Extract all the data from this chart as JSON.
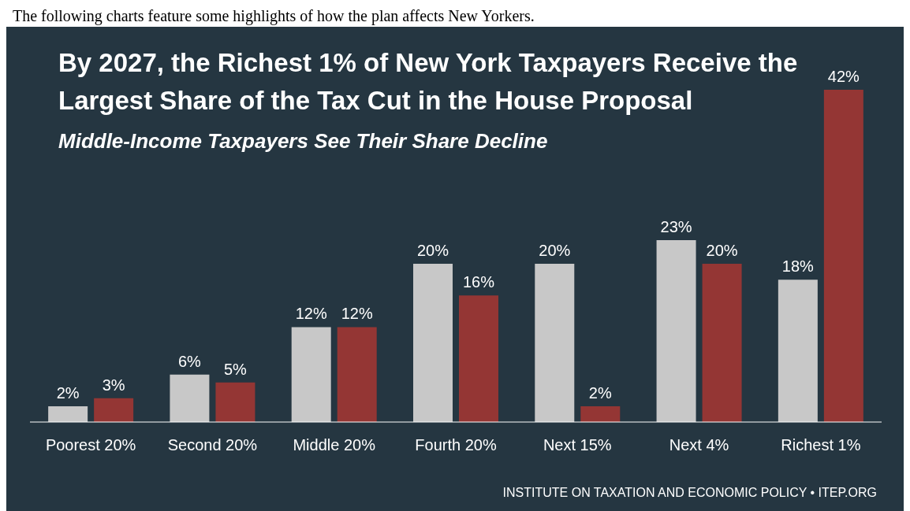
{
  "chart_data": {
    "type": "bar",
    "title": "By 2027, the Richest 1% of New York Taxpayers Receive the Largest Share of the Tax Cut in the House Proposal",
    "subtitle": "Middle-Income Taxpayers See Their Share Decline",
    "annotations": [
      "The following charts feature some highlights of how the plan affects New Yorkers.",
      "INSTITUTE ON TAXATION AND ECONOMIC POLICY • ITEP.ORG"
    ],
    "categories": [
      "Poorest 20%",
      "Second 20%",
      "Middle 20%",
      "Fourth 20%",
      "Next 15%",
      "Next 4%",
      "Richest 1%"
    ],
    "series": [
      {
        "color": "#c8c8c8",
        "values": [
          2,
          6,
          12,
          20,
          20,
          23,
          18
        ],
        "value_labels": [
          "2%",
          "6%",
          "12%",
          "20%",
          "20%",
          "23%",
          "18%"
        ]
      },
      {
        "color": "#943634",
        "values": [
          3,
          5,
          12,
          16,
          2,
          20,
          42
        ],
        "value_labels": [
          "3%",
          "5%",
          "12%",
          "16%",
          "2%",
          "20%",
          "42%"
        ]
      }
    ],
    "data_labels": true,
    "grid": false,
    "legend": false
  }
}
